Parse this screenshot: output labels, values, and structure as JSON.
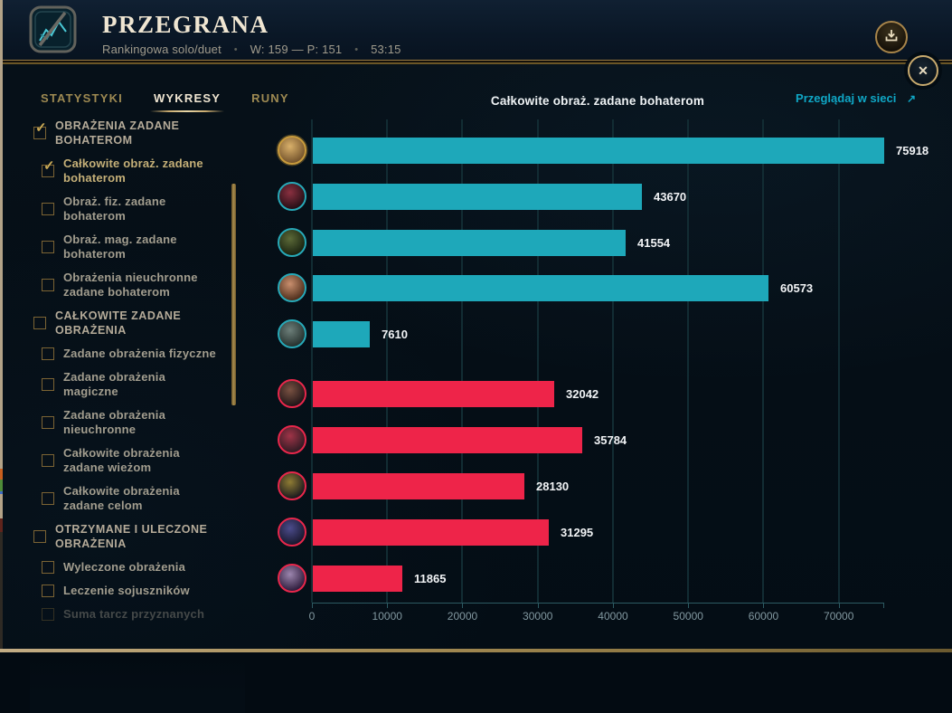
{
  "header": {
    "result_title": "PRZEGRANA",
    "queue_type": "Rankingowa solo/duet",
    "record": "W: 159 — P: 151",
    "duration": "53:15"
  },
  "icons": {
    "download": "tray-arrow-down",
    "close": "✕",
    "external_arrow": "↗",
    "check": "✓",
    "separator_dot": "•"
  },
  "tabs": [
    {
      "label": "STATYSTYKI",
      "active": false
    },
    {
      "label": "WYKRESY",
      "active": true
    },
    {
      "label": "RUNY",
      "active": false
    }
  ],
  "web_link": {
    "label": "Przeglądaj w sieci"
  },
  "sidebar": {
    "items": [
      {
        "label": "OBRAŻENIA ZADANE BOHATEROM",
        "type": "section",
        "checked": true,
        "selected": false,
        "faded": false
      },
      {
        "label": "Całkowite obraż. zadane bohaterom",
        "type": "item",
        "checked": true,
        "selected": true,
        "faded": false
      },
      {
        "label": "Obraż. fiz. zadane bohaterom",
        "type": "item",
        "checked": false,
        "selected": false,
        "faded": false
      },
      {
        "label": "Obraż. mag. zadane bohaterom",
        "type": "item",
        "checked": false,
        "selected": false,
        "faded": false
      },
      {
        "label": "Obrażenia nieuchronne zadane bohaterom",
        "type": "item",
        "checked": false,
        "selected": false,
        "faded": false
      },
      {
        "label": "CAŁKOWITE ZADANE OBRAŻENIA",
        "type": "section",
        "checked": false,
        "selected": false,
        "faded": false
      },
      {
        "label": "Zadane obrażenia fizyczne",
        "type": "item",
        "checked": false,
        "selected": false,
        "faded": false
      },
      {
        "label": "Zadane obrażenia magiczne",
        "type": "item",
        "checked": false,
        "selected": false,
        "faded": false
      },
      {
        "label": "Zadane obrażenia nieuchronne",
        "type": "item",
        "checked": false,
        "selected": false,
        "faded": false
      },
      {
        "label": "Całkowite obrażenia zadane wieżom",
        "type": "item",
        "checked": false,
        "selected": false,
        "faded": false
      },
      {
        "label": "Całkowite obrażenia zadane celom",
        "type": "item",
        "checked": false,
        "selected": false,
        "faded": false
      },
      {
        "label": "OTRZYMANE I ULECZONE OBRAŻENIA",
        "type": "section",
        "checked": false,
        "selected": false,
        "faded": false
      },
      {
        "label": "Wyleczone obrażenia",
        "type": "item",
        "checked": false,
        "selected": false,
        "faded": false
      },
      {
        "label": "Leczenie sojuszników",
        "type": "item",
        "checked": false,
        "selected": false,
        "faded": false
      },
      {
        "label": "Suma tarcz przyznanych",
        "type": "item",
        "checked": false,
        "selected": false,
        "faded": true
      }
    ]
  },
  "chart_data": {
    "type": "bar",
    "orientation": "horizontal",
    "title": "Całkowite obraż. zadane bohaterom",
    "x_axis": {
      "ticks": [
        0,
        10000,
        20000,
        30000,
        40000,
        50000,
        60000,
        70000
      ],
      "max": 75918
    },
    "grid": true,
    "teams": {
      "blue": {
        "bar_color": "#1ea8ba"
      },
      "red": {
        "bar_color": "#ee2449"
      }
    },
    "rows": [
      {
        "value": 75918,
        "team": "blue",
        "is_player": true,
        "ring_color": "#c89b3c",
        "avatar_colors": [
          "#d9b06a",
          "#70502a"
        ]
      },
      {
        "value": 43670,
        "team": "blue",
        "is_player": false,
        "ring_color": "#27a9b8",
        "avatar_colors": [
          "#8a3040",
          "#200d14"
        ]
      },
      {
        "value": 41554,
        "team": "blue",
        "is_player": false,
        "ring_color": "#27a9b8",
        "avatar_colors": [
          "#5c6a38",
          "#17200f"
        ]
      },
      {
        "value": 60573,
        "team": "blue",
        "is_player": false,
        "ring_color": "#27a9b8",
        "avatar_colors": [
          "#c98f6e",
          "#4a2a18"
        ]
      },
      {
        "value": 7610,
        "team": "blue",
        "is_player": false,
        "ring_color": "#27a9b8",
        "avatar_colors": [
          "#6d7f7a",
          "#232e2b"
        ]
      },
      {
        "value": 32042,
        "team": "red",
        "is_player": false,
        "ring_color": "#e8274b",
        "avatar_colors": [
          "#7a5242",
          "#1c1216"
        ]
      },
      {
        "value": 35784,
        "team": "red",
        "is_player": false,
        "ring_color": "#e8274b",
        "avatar_colors": [
          "#a03448",
          "#2c1a22"
        ]
      },
      {
        "value": 28130,
        "team": "red",
        "is_player": false,
        "ring_color": "#e8274b",
        "avatar_colors": [
          "#8f7c34",
          "#15151d"
        ]
      },
      {
        "value": 31295,
        "team": "red",
        "is_player": false,
        "ring_color": "#e8274b",
        "avatar_colors": [
          "#4c4c8c",
          "#16162a"
        ]
      },
      {
        "value": 11865,
        "team": "red",
        "is_player": false,
        "ring_color": "#e8274b",
        "avatar_colors": [
          "#9c86ae",
          "#2a1838"
        ]
      }
    ]
  }
}
